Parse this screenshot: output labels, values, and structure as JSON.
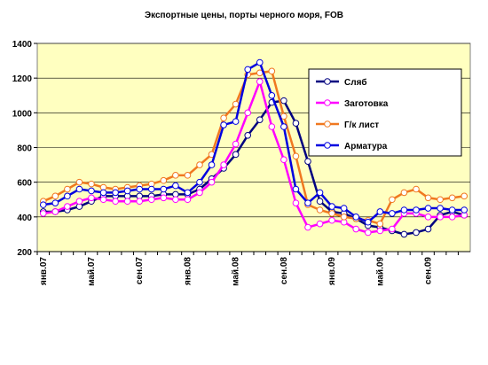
{
  "chart_data": {
    "type": "line",
    "title": "Экспортные цены, порты черного моря, FOB",
    "categories": [
      "янв.07",
      null,
      null,
      null,
      "май.07",
      null,
      null,
      null,
      "сен.07",
      null,
      null,
      null,
      "янв.08",
      null,
      null,
      null,
      "май.08",
      null,
      null,
      null,
      "сен.08",
      null,
      null,
      null,
      "янв.09",
      null,
      null,
      null,
      "май.09",
      null,
      null,
      null,
      "сен.09",
      null,
      null,
      null
    ],
    "series": [
      {
        "name": "Сляб",
        "color": "#000080",
        "values": [
          430,
          430,
          440,
          460,
          490,
          520,
          520,
          520,
          520,
          520,
          530,
          530,
          530,
          560,
          620,
          680,
          760,
          870,
          960,
          1060,
          1070,
          940,
          720,
          490,
          430,
          420,
          390,
          350,
          340,
          320,
          300,
          310,
          330,
          410,
          430,
          410
        ]
      },
      {
        "name": "Заготовка",
        "color": "#ff00ff",
        "values": [
          420,
          430,
          460,
          490,
          510,
          500,
          490,
          490,
          490,
          500,
          510,
          500,
          500,
          540,
          600,
          700,
          820,
          1000,
          1180,
          920,
          730,
          480,
          340,
          360,
          380,
          370,
          330,
          310,
          320,
          330,
          420,
          420,
          400,
          400,
          400,
          410
        ]
      },
      {
        "name": "Г/к лист",
        "color": "#f07820",
        "values": [
          490,
          520,
          560,
          600,
          590,
          570,
          560,
          570,
          580,
          590,
          610,
          640,
          640,
          700,
          760,
          970,
          1050,
          1220,
          1230,
          1240,
          980,
          750,
          470,
          440,
          420,
          400,
          390,
          380,
          360,
          500,
          540,
          560,
          510,
          500,
          510,
          520
        ]
      },
      {
        "name": "Арматура",
        "color": "#0000e0",
        "values": [
          470,
          480,
          520,
          560,
          550,
          540,
          540,
          550,
          560,
          560,
          560,
          580,
          540,
          600,
          700,
          930,
          950,
          1250,
          1290,
          1100,
          920,
          560,
          480,
          540,
          460,
          450,
          400,
          370,
          430,
          420,
          440,
          440,
          450,
          450,
          440,
          440
        ]
      }
    ],
    "ylim": [
      200,
      1400
    ],
    "yticks": [
      200,
      400,
      600,
      800,
      1000,
      1200,
      1400
    ],
    "grid": true,
    "legend": "upper right"
  }
}
